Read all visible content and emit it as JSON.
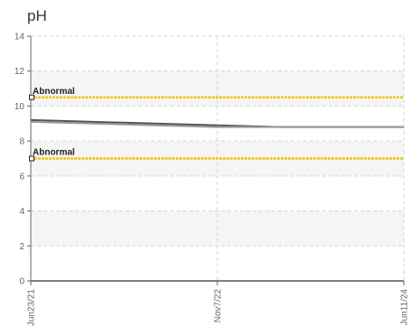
{
  "chart_data": {
    "type": "line",
    "title": "pH",
    "xlabel": "",
    "ylabel": "",
    "ylim": [
      0,
      14
    ],
    "yticks": [
      0,
      2,
      4,
      6,
      8,
      10,
      12,
      14
    ],
    "xticks": [
      "Jun23/21",
      "Nov7/22",
      "Jun11/24"
    ],
    "grid": true,
    "bands": [
      [
        2,
        4
      ],
      [
        6,
        8
      ],
      [
        10,
        12
      ]
    ],
    "series": [
      {
        "values": [
          9.2,
          9.1,
          9.0,
          8.9,
          8.8,
          8.8,
          8.8
        ],
        "color": "#555555"
      },
      {
        "values": [
          9.1,
          9.0,
          8.9,
          8.8,
          8.8,
          8.8,
          8.8
        ],
        "color": "#999999"
      }
    ],
    "thresholds": [
      {
        "label": "Abnormal",
        "value": 10.5,
        "color": "#f2c40f"
      },
      {
        "label": "Abnormal",
        "value": 7.0,
        "color": "#f2c40f"
      }
    ]
  }
}
